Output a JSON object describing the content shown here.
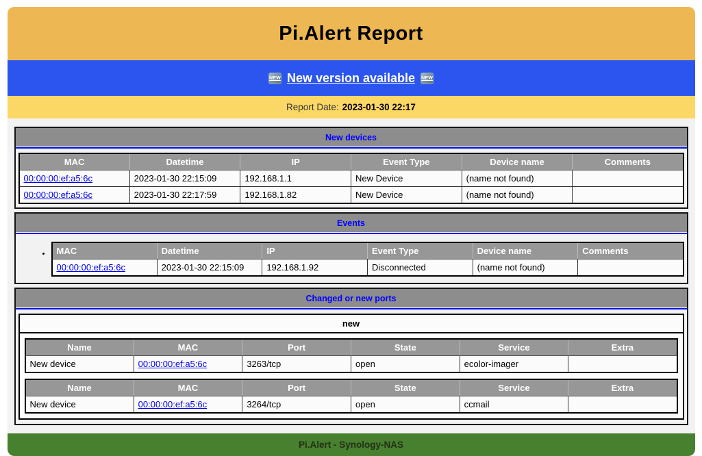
{
  "page": {
    "title": "Pi.Alert Report",
    "banner": {
      "badge": "NEW",
      "link_label": "New version available"
    },
    "report_date_label": "Report Date:",
    "report_date_value": "2023-01-30 22:17",
    "footer_text": "Pi.Alert - Synology-NAS"
  },
  "colors": {
    "header_bg": "#edb853",
    "banner_bg": "#2b55ee",
    "datebar_bg": "#fbd765",
    "section_title_bg": "#8d8d8d",
    "section_title_text": "#0000ff",
    "table_header_bg": "#979797",
    "link_blue": "#0000ee",
    "footer_bg": "#47802e"
  },
  "sections": {
    "new_devices": {
      "title": "New devices",
      "columns": [
        "MAC",
        "Datetime",
        "IP",
        "Event Type",
        "Device name",
        "Comments"
      ],
      "rows": [
        {
          "mac": "00:00:00:ef:a5:6c",
          "datetime": "2023-01-30 22:15:09",
          "ip": "192.168.1.1",
          "event_type": "New Device",
          "device_name": "(name not found)",
          "comments": ""
        },
        {
          "mac": "00:00:00:ef:a5:6c",
          "datetime": "2023-01-30 22:17:59",
          "ip": "192.168.1.82",
          "event_type": "New Device",
          "device_name": "(name not found)",
          "comments": ""
        }
      ]
    },
    "events": {
      "title": "Events",
      "columns": [
        "MAC",
        "Datetime",
        "IP",
        "Event Type",
        "Device name",
        "Comments"
      ],
      "rows": [
        {
          "mac": "00:00:00:ef:a5:6c",
          "datetime": "2023-01-30 22:15:09",
          "ip": "192.168.1.92",
          "event_type": "Disconnected",
          "device_name": "(name not found)",
          "comments": ""
        }
      ]
    },
    "ports": {
      "title": "Changed or new ports",
      "group_label": "new",
      "columns": [
        "Name",
        "MAC",
        "Port",
        "State",
        "Service",
        "Extra"
      ],
      "rows": [
        {
          "name": "New device",
          "mac": "00:00:00:ef:a5:6c",
          "port": "3263/tcp",
          "state": "open",
          "service": "ecolor-imager",
          "extra": ""
        },
        {
          "name": "New device",
          "mac": "00:00:00:ef:a5:6c",
          "port": "3264/tcp",
          "state": "open",
          "service": "ccmail",
          "extra": ""
        }
      ]
    }
  }
}
